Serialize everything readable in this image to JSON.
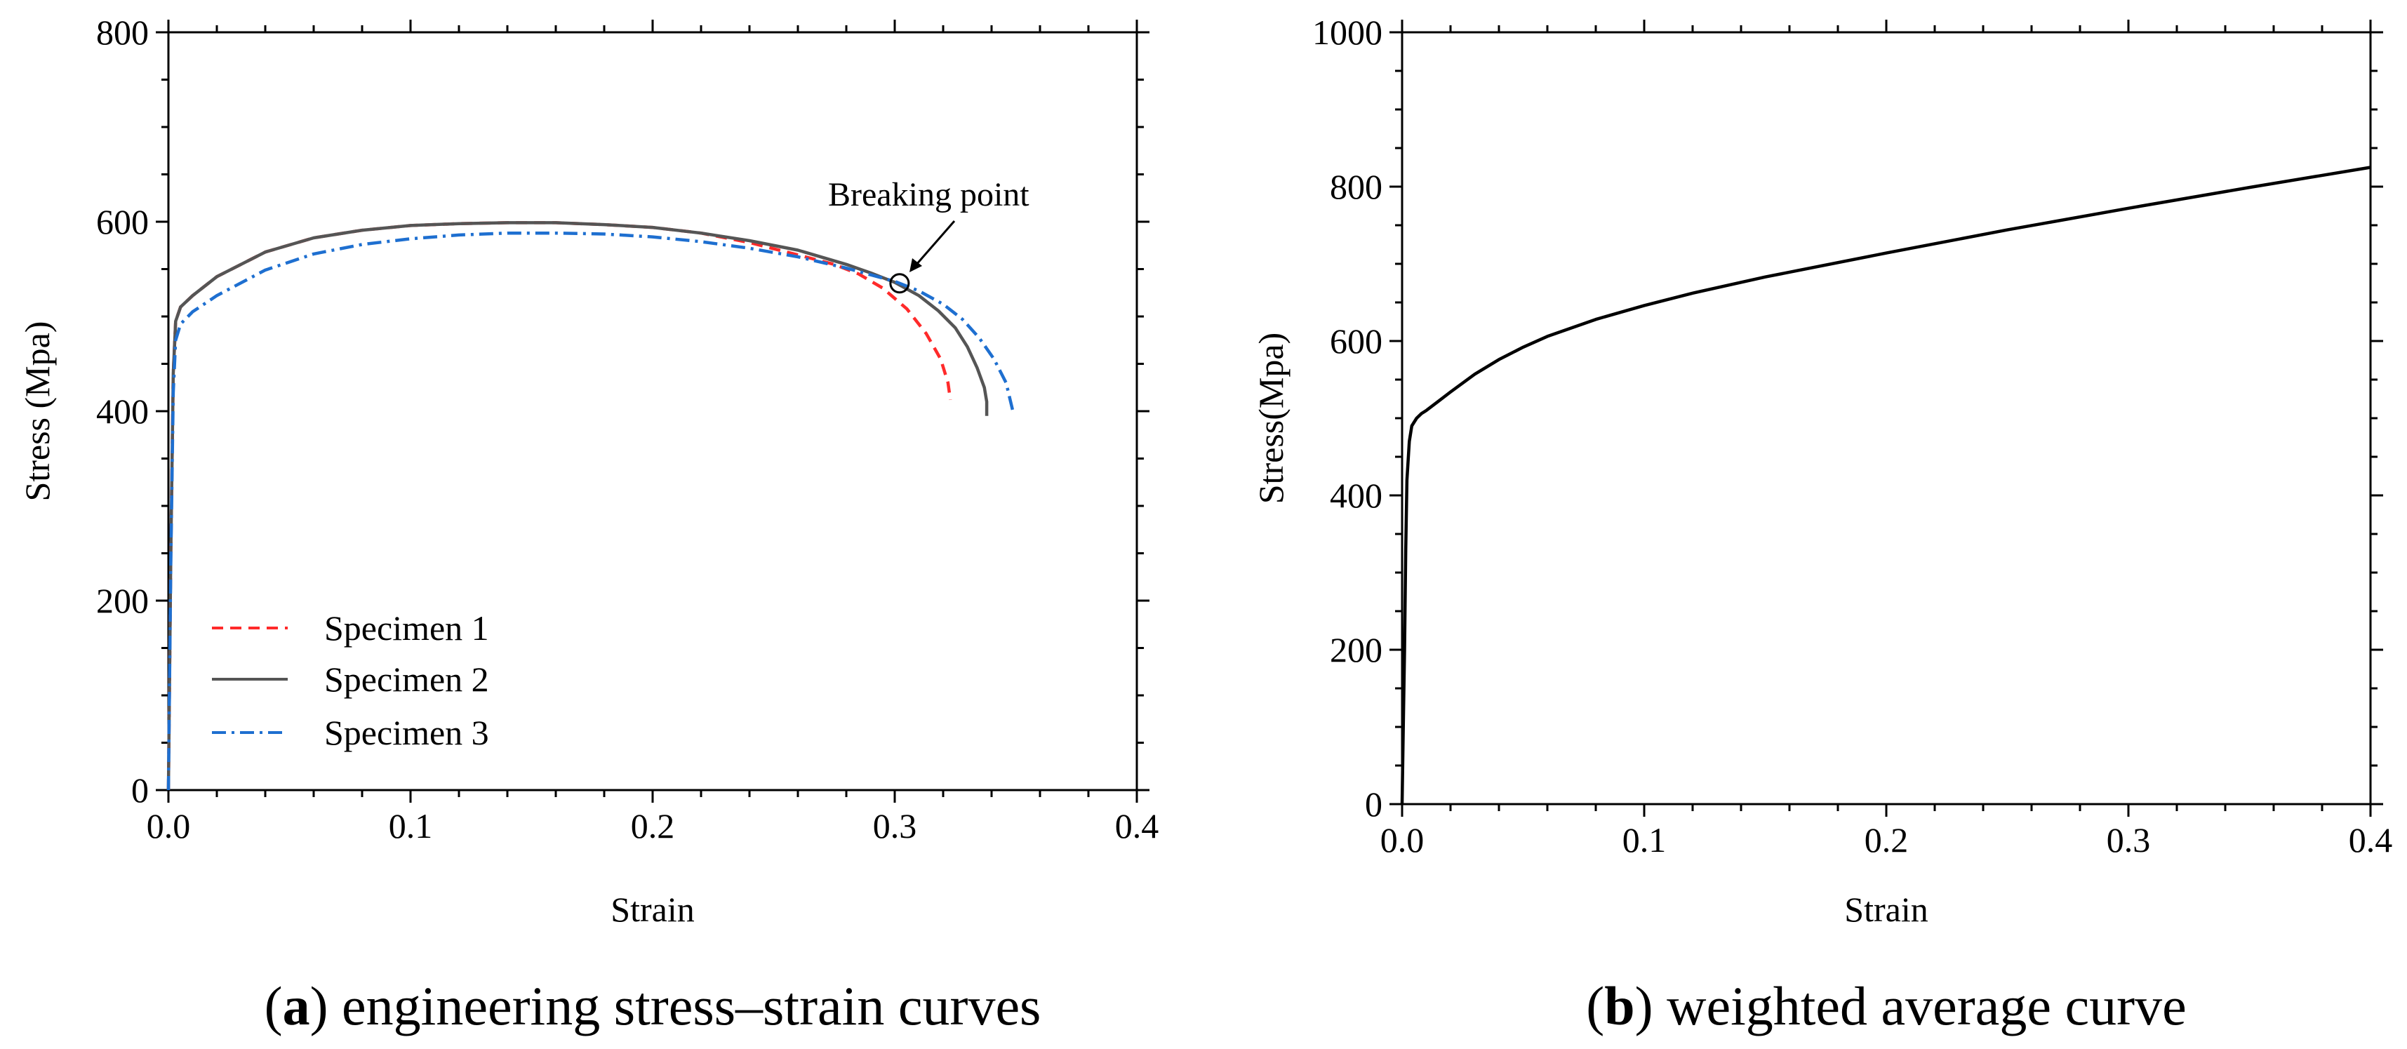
{
  "chart_data": [
    {
      "type": "line",
      "panel_label": "a",
      "caption_open": "(",
      "caption_close": ")",
      "caption_text": " engineering stress–strain curves",
      "xlabel": "Strain",
      "ylabel": "Stress (Mpa)",
      "xlim": [
        0,
        0.4
      ],
      "ylim": [
        0,
        800
      ],
      "xticks": [
        0.0,
        0.1,
        0.2,
        0.3,
        0.4
      ],
      "xtick_labels": [
        "0.0",
        "0.1",
        "0.2",
        "0.3",
        "0.4"
      ],
      "yticks": [
        0,
        200,
        400,
        600,
        800
      ],
      "ytick_labels": [
        "0",
        "200",
        "400",
        "600",
        "800"
      ],
      "legend_position": "lower-left",
      "annotation": {
        "text": "Breaking point",
        "x": 0.302,
        "y": 535
      },
      "series": [
        {
          "name": "Specimen 1",
          "color": "#ff2a2a",
          "style": "dashed",
          "x": [
            0,
            0.001,
            0.002,
            0.003,
            0.005,
            0.01,
            0.02,
            0.04,
            0.06,
            0.08,
            0.1,
            0.12,
            0.14,
            0.16,
            0.18,
            0.2,
            0.22,
            0.24,
            0.26,
            0.275,
            0.285,
            0.295,
            0.305,
            0.313,
            0.319,
            0.322,
            0.323
          ],
          "values": [
            0,
            250,
            440,
            495,
            510,
            522,
            542,
            568,
            583,
            591,
            596,
            598,
            599,
            599,
            597,
            594,
            588,
            578,
            565,
            555,
            545,
            530,
            508,
            482,
            455,
            430,
            412
          ]
        },
        {
          "name": "Specimen 2",
          "color": "#555555",
          "style": "solid",
          "x": [
            0,
            0.001,
            0.002,
            0.003,
            0.005,
            0.01,
            0.02,
            0.04,
            0.06,
            0.08,
            0.1,
            0.12,
            0.14,
            0.16,
            0.18,
            0.2,
            0.22,
            0.24,
            0.26,
            0.28,
            0.29,
            0.3,
            0.31,
            0.318,
            0.325,
            0.33,
            0.334,
            0.337,
            0.338,
            0.338
          ],
          "values": [
            0,
            250,
            440,
            495,
            510,
            522,
            542,
            568,
            583,
            591,
            596,
            598,
            599,
            599,
            597,
            594,
            588,
            580,
            570,
            555,
            546,
            536,
            522,
            506,
            488,
            468,
            446,
            425,
            410,
            395
          ]
        },
        {
          "name": "Specimen 3",
          "color": "#1e6fd0",
          "style": "dashdot",
          "x": [
            0,
            0.001,
            0.002,
            0.003,
            0.005,
            0.01,
            0.02,
            0.04,
            0.06,
            0.08,
            0.1,
            0.12,
            0.14,
            0.16,
            0.18,
            0.2,
            0.22,
            0.24,
            0.26,
            0.28,
            0.29,
            0.3,
            0.31,
            0.32,
            0.328,
            0.335,
            0.341,
            0.346,
            0.349
          ],
          "values": [
            0,
            240,
            420,
            475,
            492,
            505,
            522,
            549,
            566,
            576,
            582,
            586,
            588,
            588,
            587,
            584,
            579,
            572,
            563,
            551,
            544,
            537,
            527,
            513,
            497,
            477,
            455,
            430,
            398
          ]
        }
      ]
    },
    {
      "type": "line",
      "panel_label": "b",
      "caption_open": "(",
      "caption_close": ")",
      "caption_text": " weighted average curve",
      "xlabel": "Strain",
      "ylabel": "Stress(Mpa)",
      "xlim": [
        0,
        0.4
      ],
      "ylim": [
        0,
        1000
      ],
      "xticks": [
        0.0,
        0.1,
        0.2,
        0.3,
        0.4
      ],
      "xtick_labels": [
        "0.0",
        "0.1",
        "0.2",
        "0.3",
        "0.4"
      ],
      "yticks": [
        0,
        200,
        400,
        600,
        800,
        1000
      ],
      "ytick_labels": [
        "0",
        "200",
        "400",
        "600",
        "800",
        "1000"
      ],
      "series": [
        {
          "name": "Weighted average",
          "color": "#000000",
          "style": "solid",
          "x": [
            0,
            0.0005,
            0.001,
            0.0015,
            0.002,
            0.003,
            0.004,
            0.006,
            0.008,
            0.01,
            0.015,
            0.02,
            0.03,
            0.04,
            0.05,
            0.06,
            0.08,
            0.1,
            0.12,
            0.15,
            0.2,
            0.25,
            0.3,
            0.35,
            0.4
          ],
          "values": [
            0,
            100,
            200,
            330,
            420,
            470,
            490,
            500,
            506,
            510,
            522,
            534,
            557,
            576,
            592,
            606,
            628,
            646,
            662,
            683,
            714,
            744,
            772,
            799,
            825
          ]
        }
      ]
    }
  ]
}
